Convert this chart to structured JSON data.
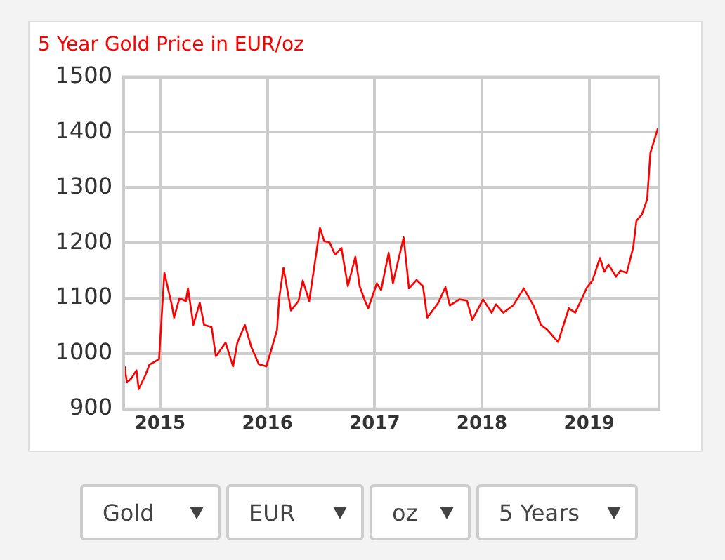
{
  "chart_data": {
    "type": "line",
    "title": "5 Year Gold Price in EUR/oz",
    "x": [
      2014.67,
      2014.69,
      2014.73,
      2014.78,
      2014.8,
      2014.86,
      2014.9,
      2014.99,
      2015.04,
      2015.11,
      2015.13,
      2015.18,
      2015.24,
      2015.26,
      2015.31,
      2015.37,
      2015.41,
      2015.48,
      2015.52,
      2015.61,
      2015.68,
      2015.72,
      2015.79,
      2015.85,
      2015.92,
      2015.99,
      2016.03,
      2016.09,
      2016.11,
      2016.15,
      2016.22,
      2016.29,
      2016.33,
      2016.39,
      2016.49,
      2016.53,
      2016.58,
      2016.63,
      2016.69,
      2016.75,
      2016.82,
      2016.86,
      2016.91,
      2016.94,
      2017.02,
      2017.06,
      2017.13,
      2017.17,
      2017.27,
      2017.32,
      2017.39,
      2017.45,
      2017.49,
      2017.59,
      2017.66,
      2017.7,
      2017.79,
      2017.86,
      2017.91,
      2018.01,
      2018.09,
      2018.13,
      2018.2,
      2018.29,
      2018.39,
      2018.48,
      2018.55,
      2018.61,
      2018.71,
      2018.81,
      2018.87,
      2018.98,
      2019.03,
      2019.1,
      2019.14,
      2019.18,
      2019.25,
      2019.29,
      2019.35,
      2019.41,
      2019.44,
      2019.49,
      2019.54,
      2019.57,
      2019.64
    ],
    "series": [
      {
        "color": "#ff0000",
        "values": [
          977,
          948,
          955,
          970,
          936,
          960,
          980,
          990,
          1146,
          1087,
          1065,
          1100,
          1095,
          1118,
          1052,
          1092,
          1052,
          1048,
          995,
          1020,
          977,
          1020,
          1052,
          1012,
          981,
          977,
          1003,
          1043,
          1100,
          1155,
          1078,
          1095,
          1132,
          1095,
          1227,
          1203,
          1201,
          1179,
          1191,
          1122,
          1175,
          1122,
          1095,
          1082,
          1127,
          1115,
          1182,
          1127,
          1210,
          1118,
          1133,
          1122,
          1065,
          1091,
          1120,
          1087,
          1098,
          1096,
          1061,
          1098,
          1074,
          1089,
          1074,
          1087,
          1118,
          1087,
          1052,
          1043,
          1021,
          1082,
          1074,
          1120,
          1132,
          1173,
          1148,
          1161,
          1139,
          1150,
          1146,
          1192,
          1240,
          1251,
          1279,
          1363,
          1407
        ]
      }
    ],
    "xlim": [
      2014.66,
      2019.65
    ],
    "xticks": [
      2015,
      2016,
      2017,
      2018,
      2019
    ],
    "ylim": [
      900,
      1500
    ],
    "yticks": [
      900,
      1000,
      1100,
      1200,
      1300,
      1400,
      1500
    ],
    "grid": true,
    "legend": false,
    "marker": "none",
    "line_style": "solid",
    "annotations": [
      "Gold",
      "EUR",
      "oz",
      "5 Years"
    ]
  }
}
